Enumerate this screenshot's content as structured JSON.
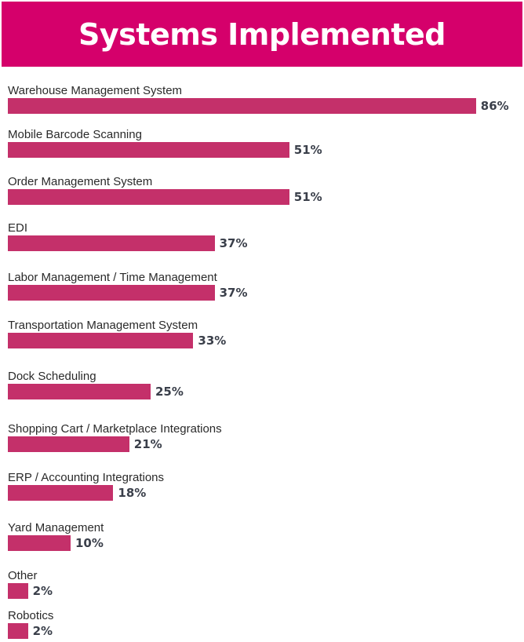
{
  "chart_data": {
    "type": "bar",
    "orientation": "horizontal",
    "title": "Systems Implemented",
    "categories": [
      "Warehouse Management System",
      "Mobile Barcode Scanning",
      "Order Management System",
      "EDI",
      "Labor Management / Time Management",
      "Transportation Management System",
      "Dock Scheduling",
      "Shopping Cart / Marketplace Integrations",
      "ERP / Accounting Integrations",
      "Yard Management",
      "Other",
      "Robotics"
    ],
    "values": [
      86,
      51,
      51,
      37,
      37,
      33,
      25,
      21,
      18,
      10,
      2,
      2
    ],
    "value_labels": [
      "86%",
      "51%",
      "51%",
      "37%",
      "37%",
      "33%",
      "25%",
      "21%",
      "18%",
      "10%",
      "2%",
      "2%"
    ],
    "unit": "%",
    "xlim": [
      0,
      100
    ],
    "grid": false,
    "legend": "none",
    "colors": {
      "header": "#d5006b",
      "bar": "#c4306a",
      "title_text": "#ffffff"
    }
  }
}
